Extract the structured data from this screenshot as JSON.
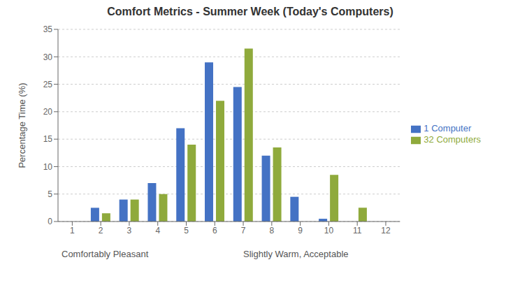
{
  "chart_data": {
    "type": "bar",
    "title": "Comfort Metrics - Summer Week (Today's Computers)",
    "categories": [
      1,
      2,
      3,
      4,
      5,
      6,
      7,
      8,
      9,
      10,
      11,
      12
    ],
    "series": [
      {
        "name": "1 Computer",
        "color": "#4472C4",
        "values": [
          0,
          2.5,
          4.0,
          7.0,
          17.0,
          29.0,
          24.5,
          12.0,
          4.5,
          0.5,
          0,
          0
        ]
      },
      {
        "name": "32 Computers",
        "color": "#8faa3c",
        "values": [
          0,
          1.5,
          4.0,
          5.0,
          14.0,
          22.0,
          31.5,
          13.5,
          0,
          8.5,
          2.5,
          0
        ]
      }
    ],
    "ylabel": "Percentage Time (%)",
    "annotations": [
      "Comfortably Pleasant",
      "Slightly Warm, Acceptable"
    ],
    "ylim": [
      0,
      35
    ],
    "yticks": [
      0,
      5,
      10,
      15,
      20,
      25,
      30,
      35
    ],
    "grid": true,
    "legend": "right"
  }
}
